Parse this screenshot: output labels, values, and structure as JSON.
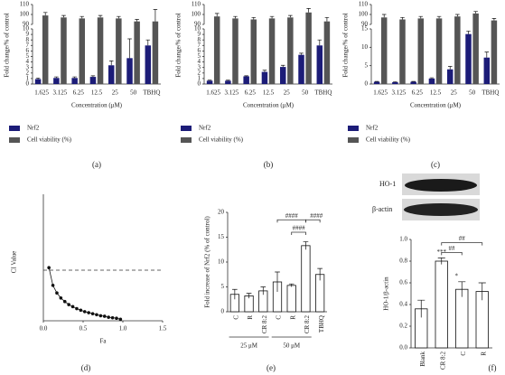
{
  "chart_data": [
    {
      "type": "broken_bar",
      "panel": "(a)",
      "ylabel": "Fold change/% of control",
      "xlabel": "Concentration (μM)",
      "categories": [
        "1.625",
        "3.125",
        "6.25",
        "12.5",
        "25",
        "50",
        "TBHQ"
      ],
      "series": [
        {
          "name": "Nrf2",
          "color": "#1c1c78",
          "values": [
            0.9,
            1.1,
            1.1,
            1.3,
            3.4,
            4.7,
            7.0
          ],
          "errors": [
            0.2,
            0.2,
            0.2,
            0.2,
            0.8,
            3.5,
            1.0
          ]
        },
        {
          "name": "Cell viability (%)",
          "color": "#555555",
          "values": [
            99,
            97,
            96,
            97,
            96,
            93,
            93
          ],
          "errors": [
            3,
            2,
            2,
            2,
            2,
            2,
            12
          ]
        }
      ],
      "ylim": [
        0,
        10
      ],
      "yticks": [
        0,
        1,
        2,
        3,
        4,
        5,
        6,
        7,
        8,
        9,
        10
      ],
      "upper_ylim": [
        90,
        110
      ],
      "upper_yticks": [
        90,
        100,
        110
      ]
    },
    {
      "type": "broken_bar",
      "panel": "(b)",
      "ylabel": "Fold change/% of control",
      "xlabel": "Concentration (μM)",
      "categories": [
        "1.625",
        "3.125",
        "6.25",
        "12.5",
        "25",
        "50",
        "TBHQ"
      ],
      "series": [
        {
          "name": "Nrf2",
          "color": "#1c1c78",
          "values": [
            0.6,
            0.6,
            1.4,
            2.2,
            3.1,
            5.3,
            7.0
          ],
          "errors": [
            0.1,
            0.1,
            0.1,
            0.3,
            0.3,
            0.3,
            1.0
          ]
        },
        {
          "name": "Cell viability (%)",
          "color": "#555555",
          "values": [
            98,
            96,
            95,
            96,
            97,
            102,
            93
          ],
          "errors": [
            3,
            2,
            2,
            2,
            2,
            4,
            4
          ]
        }
      ],
      "ylim": [
        0,
        10
      ],
      "yticks": [
        0,
        1,
        2,
        3,
        4,
        5,
        6,
        7,
        8,
        9,
        10
      ],
      "upper_ylim": [
        90,
        110
      ],
      "upper_yticks": [
        90,
        100,
        110
      ]
    },
    {
      "type": "broken_bar",
      "panel": "(c)",
      "ylabel": "Fold change/% of control",
      "xlabel": "Concentration (μM)",
      "categories": [
        "1.625",
        "3.125",
        "6.25",
        "12.5",
        "25",
        "50",
        "TBHQ"
      ],
      "series": [
        {
          "name": "Nrf2",
          "color": "#1c1c78",
          "values": [
            0.6,
            0.5,
            0.6,
            1.5,
            4.0,
            13.6,
            7.2
          ],
          "errors": [
            0.1,
            0.1,
            0.1,
            0.2,
            0.8,
            0.8,
            1.5
          ]
        },
        {
          "name": "Cell viability (%)",
          "color": "#555555",
          "values": [
            97,
            95,
            96,
            96,
            98,
            101,
            94
          ],
          "errors": [
            3,
            2,
            2,
            2,
            2,
            2,
            2
          ]
        }
      ],
      "ylim": [
        0,
        15
      ],
      "yticks": [
        0,
        5,
        10,
        15
      ],
      "upper_ylim": [
        90,
        110
      ],
      "upper_yticks": [
        90,
        100,
        110
      ]
    },
    {
      "type": "line",
      "panel": "(d)",
      "ylabel": "CI Value",
      "xlabel": "Fa",
      "color": "#111111",
      "x": [
        0.07,
        0.12,
        0.17,
        0.22,
        0.27,
        0.32,
        0.37,
        0.42,
        0.47,
        0.52,
        0.57,
        0.62,
        0.67,
        0.72,
        0.77,
        0.82,
        0.87,
        0.92,
        0.97
      ],
      "values": [
        1.05,
        0.7,
        0.55,
        0.45,
        0.38,
        0.32,
        0.28,
        0.24,
        0.21,
        0.18,
        0.16,
        0.14,
        0.12,
        0.1,
        0.09,
        0.07,
        0.06,
        0.05,
        0.03
      ],
      "xlim": [
        0,
        1.5
      ],
      "xticks": [
        {
          "value": 0,
          "label": "0.0"
        },
        0.5,
        {
          "value": 1,
          "label": "1.0"
        },
        1.5
      ],
      "ylim": [
        0,
        2.5
      ],
      "reference_line": 1
    },
    {
      "type": "bar",
      "panel": "(e)",
      "ylabel": "Fold increase of Nrf2 (% of control)",
      "categories": [
        "C",
        "R",
        "CR 8:2",
        "C",
        "R",
        "CR 8:2",
        "TBHQ"
      ],
      "group_labels": [
        "25 μM",
        "50 μM"
      ],
      "values": [
        3.5,
        3.2,
        4.2,
        6.0,
        5.3,
        13.3,
        7.5
      ],
      "errors": [
        1.0,
        0.5,
        0.8,
        2.0,
        0.3,
        0.8,
        1.2
      ],
      "annotations": [
        "####",
        "####",
        "####"
      ],
      "color": "#ffffff",
      "ylim": [
        0,
        20
      ],
      "yticks": [
        0,
        5,
        10,
        15,
        20
      ]
    },
    {
      "type": "bar",
      "panel": "(f)",
      "ylabel": "HO-1/β-actin",
      "blot_labels": [
        "HO-1",
        "β-actin"
      ],
      "categories": [
        "Blank",
        "CR 8:2",
        "C",
        "R"
      ],
      "values": [
        0.36,
        0.8,
        0.54,
        0.52
      ],
      "errors": [
        0.08,
        0.03,
        0.07,
        0.08
      ],
      "annotations": [
        "***",
        "*",
        "##",
        "##"
      ],
      "color": "#ffffff",
      "ylim": [
        0,
        1
      ],
      "yticks": [
        {
          "value": 0,
          "label": "0.0"
        },
        0.2,
        0.4,
        0.6,
        0.8,
        {
          "value": 1,
          "label": "1.0"
        }
      ]
    }
  ]
}
